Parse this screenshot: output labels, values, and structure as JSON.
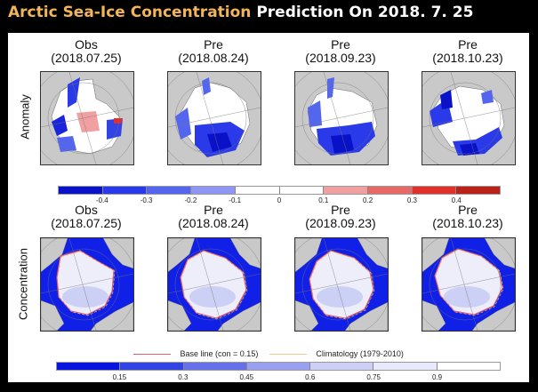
{
  "header": {
    "title_highlight": "Arctic Sea-Ice Concentration",
    "title_rest": "Prediction On 2018. 7. 25",
    "highlight_color": "#f3b55a"
  },
  "chart_data": [
    {
      "type": "heatmap",
      "title": "Anomaly",
      "row_label": "Anomaly",
      "projection": "polar-stereographic (Arctic)",
      "panels": [
        {
          "label": "Obs",
          "date": "(2018.07.25)"
        },
        {
          "label": "Pre",
          "date": "(2018.08.24)"
        },
        {
          "label": "Pre",
          "date": "(2018.09.23)"
        },
        {
          "label": "Pre",
          "date": "(2018.10.23)"
        }
      ],
      "colorbar": {
        "ticks": [
          "-0.4",
          "-0.3",
          "-0.2",
          "-0.1",
          "0",
          "0.1",
          "0.2",
          "0.3",
          "0.4"
        ],
        "colors": [
          "#0a12c8",
          "#2a3ae8",
          "#5566ee",
          "#8f96f4",
          "#ffffff",
          "#ffffff",
          "#f0a0a0",
          "#e86a66",
          "#e0302a",
          "#b82218"
        ],
        "range": [
          -0.5,
          0.5
        ]
      }
    },
    {
      "type": "heatmap",
      "title": "Concentration",
      "row_label": "Concentration",
      "projection": "polar-stereographic (Arctic)",
      "panels": [
        {
          "label": "Obs",
          "date": "(2018.07.25)"
        },
        {
          "label": "Pre",
          "date": "(2018.08.24)"
        },
        {
          "label": "Pre",
          "date": "(2018.09.23)"
        },
        {
          "label": "Pre",
          "date": "(2018.10.23)"
        }
      ],
      "legend": [
        {
          "label": "Base line (con = 0.15)",
          "color": "#e06070"
        },
        {
          "label": "Climatology (1979-2010)",
          "color": "#f5c890"
        }
      ],
      "colorbar": {
        "ticks": [
          "0.15",
          "0.3",
          "0.45",
          "0.6",
          "0.75",
          "0.9"
        ],
        "colors": [
          "#0a14e0",
          "#3344e4",
          "#6670e8",
          "#9aa0f0",
          "#cccff6",
          "#e8e9fa",
          "#ffffff"
        ],
        "range": [
          0,
          1
        ]
      }
    }
  ]
}
